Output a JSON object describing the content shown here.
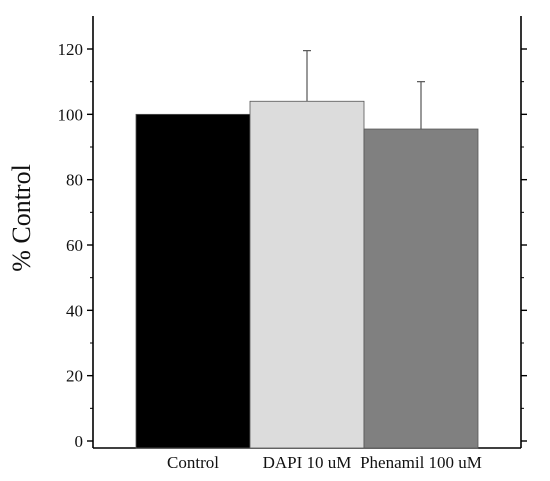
{
  "chart_data": {
    "type": "bar",
    "title": "",
    "xlabel": "",
    "ylabel": "% Control",
    "categories": [
      "Control",
      "DAPI 10 uM",
      "Phenamil 100 uM"
    ],
    "values": [
      100,
      104,
      95.5
    ],
    "errors": [
      0,
      15.5,
      14.5
    ],
    "colors": [
      "#000000",
      "#dcdcdc",
      "#808080"
    ],
    "ylim": [
      0,
      130
    ],
    "yticks": [
      0,
      20,
      40,
      60,
      80,
      100,
      120
    ],
    "grid": false,
    "legend": "none"
  }
}
